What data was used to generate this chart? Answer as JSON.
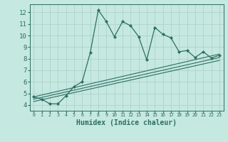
{
  "x": [
    0,
    1,
    2,
    3,
    4,
    5,
    6,
    7,
    8,
    9,
    10,
    11,
    12,
    13,
    14,
    15,
    16,
    17,
    18,
    19,
    20,
    21,
    22,
    23
  ],
  "line1": [
    4.7,
    4.5,
    4.1,
    4.1,
    4.8,
    5.6,
    6.0,
    8.5,
    12.2,
    11.2,
    9.9,
    11.2,
    10.85,
    9.9,
    7.9,
    10.7,
    10.1,
    9.8,
    8.6,
    8.7,
    8.1,
    8.6,
    8.05,
    8.3
  ],
  "line2_x": [
    0,
    23
  ],
  "line2_y": [
    4.7,
    8.4
  ],
  "line3_x": [
    0,
    23
  ],
  "line3_y": [
    4.5,
    8.1
  ],
  "line4_x": [
    0,
    23
  ],
  "line4_y": [
    4.3,
    7.85
  ],
  "line_color": "#2d6e63",
  "bg_color": "#c5e8e0",
  "grid_color": "#aacfc8",
  "xlabel": "Humidex (Indice chaleur)",
  "xlim": [
    -0.5,
    23.5
  ],
  "ylim": [
    3.5,
    12.7
  ],
  "yticks": [
    4,
    5,
    6,
    7,
    8,
    9,
    10,
    11,
    12
  ],
  "xtick_labels": [
    "0",
    "1",
    "2",
    "3",
    "4",
    "5",
    "6",
    "7",
    "8",
    "9",
    "10",
    "11",
    "12",
    "13",
    "14",
    "15",
    "16",
    "17",
    "18",
    "19",
    "20",
    "21",
    "22",
    "23"
  ],
  "xlabel_fontsize": 7,
  "ytick_fontsize": 6.5,
  "xtick_fontsize": 4.8
}
